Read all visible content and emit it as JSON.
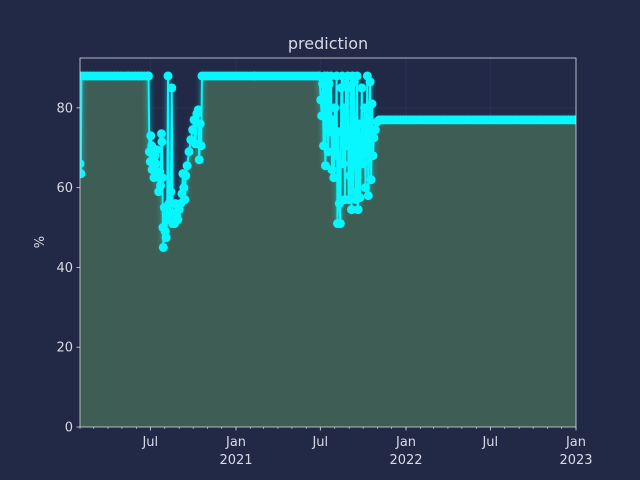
{
  "chart_data": {
    "type": "area",
    "title": "prediction",
    "xlabel": "",
    "ylabel": "%",
    "xlim": [
      "2020-02-01",
      "2023-01-01"
    ],
    "ylim": [
      0,
      92.5
    ],
    "yticks": [
      0,
      20,
      40,
      60,
      80
    ],
    "xticks": [
      {
        "date": "2020-07-01",
        "label": "Jul",
        "sublabel": ""
      },
      {
        "date": "2021-01-01",
        "label": "Jan",
        "sublabel": "2021"
      },
      {
        "date": "2021-07-01",
        "label": "Jul",
        "sublabel": ""
      },
      {
        "date": "2022-01-01",
        "label": "Jan",
        "sublabel": "2022"
      },
      {
        "date": "2022-07-01",
        "label": "Jul",
        "sublabel": ""
      },
      {
        "date": "2023-01-01",
        "label": "Jan",
        "sublabel": "2023"
      }
    ],
    "grid": true,
    "line_color": "#08f7fe",
    "fill_color": "#3e5e55",
    "background": "#212946",
    "series": [
      {
        "points": [
          [
            "2020-02-01",
            66
          ],
          [
            "2020-02-03",
            63.5
          ],
          [
            "2020-02-04",
            88
          ],
          [
            "2020-06-27",
            88
          ],
          [
            "2020-06-29",
            69
          ],
          [
            "2020-07-01",
            66.5
          ],
          [
            "2020-07-02",
            73
          ],
          [
            "2020-07-04",
            70.5
          ],
          [
            "2020-07-05",
            64.5
          ],
          [
            "2020-07-07",
            67
          ],
          [
            "2020-07-09",
            62.5
          ],
          [
            "2020-07-11",
            68
          ],
          [
            "2020-07-13",
            66
          ],
          [
            "2020-07-15",
            69.5
          ],
          [
            "2020-07-17",
            63.5
          ],
          [
            "2020-07-19",
            59
          ],
          [
            "2020-07-21",
            64
          ],
          [
            "2020-07-23",
            60.5
          ],
          [
            "2020-07-25",
            73.5
          ],
          [
            "2020-07-26",
            71.5
          ],
          [
            "2020-07-27",
            62.5
          ],
          [
            "2020-07-28",
            50
          ],
          [
            "2020-07-29",
            45
          ],
          [
            "2020-07-31",
            55
          ],
          [
            "2020-08-02",
            49
          ],
          [
            "2020-08-04",
            47.5
          ],
          [
            "2020-08-06",
            52
          ],
          [
            "2020-08-08",
            88
          ],
          [
            "2020-08-10",
            56
          ],
          [
            "2020-08-12",
            53.5
          ],
          [
            "2020-08-14",
            59
          ],
          [
            "2020-08-16",
            85
          ],
          [
            "2020-08-18",
            51
          ],
          [
            "2020-08-20",
            53.5
          ],
          [
            "2020-08-22",
            51
          ],
          [
            "2020-08-24",
            56
          ],
          [
            "2020-08-26",
            53
          ],
          [
            "2020-08-29",
            52
          ],
          [
            "2020-09-01",
            54.5
          ],
          [
            "2020-09-04",
            56
          ],
          [
            "2020-09-07",
            58.5
          ],
          [
            "2020-09-09",
            63.5
          ],
          [
            "2020-09-11",
            60
          ],
          [
            "2020-09-13",
            57
          ],
          [
            "2020-09-15",
            63
          ],
          [
            "2020-09-18",
            65.5
          ],
          [
            "2020-09-22",
            69
          ],
          [
            "2020-09-26",
            72
          ],
          [
            "2020-09-30",
            74.5
          ],
          [
            "2020-10-03",
            77
          ],
          [
            "2020-10-06",
            71
          ],
          [
            "2020-10-09",
            78.5
          ],
          [
            "2020-10-12",
            79.5
          ],
          [
            "2020-10-14",
            67
          ],
          [
            "2020-10-16",
            76
          ],
          [
            "2020-10-18",
            70.5
          ],
          [
            "2020-10-20",
            88
          ],
          [
            "2021-06-29",
            88
          ],
          [
            "2021-07-02",
            82
          ],
          [
            "2021-07-04",
            78
          ],
          [
            "2021-07-06",
            86
          ],
          [
            "2021-07-08",
            70.5
          ],
          [
            "2021-07-10",
            88
          ],
          [
            "2021-07-12",
            65.5
          ],
          [
            "2021-07-14",
            84
          ],
          [
            "2021-07-16",
            88
          ],
          [
            "2021-07-18",
            69
          ],
          [
            "2021-07-20",
            86
          ],
          [
            "2021-07-22",
            74
          ],
          [
            "2021-07-24",
            88
          ],
          [
            "2021-07-26",
            64.5
          ],
          [
            "2021-07-28",
            77
          ],
          [
            "2021-07-30",
            62.5
          ],
          [
            "2021-08-01",
            80
          ],
          [
            "2021-08-03",
            68
          ],
          [
            "2021-08-05",
            88
          ],
          [
            "2021-08-07",
            51
          ],
          [
            "2021-08-09",
            74
          ],
          [
            "2021-08-11",
            56
          ],
          [
            "2021-08-13",
            51
          ],
          [
            "2021-08-15",
            85
          ],
          [
            "2021-08-17",
            88
          ],
          [
            "2021-08-19",
            66
          ],
          [
            "2021-08-21",
            80
          ],
          [
            "2021-08-23",
            57
          ],
          [
            "2021-08-25",
            86
          ],
          [
            "2021-08-27",
            70.5
          ],
          [
            "2021-08-29",
            88
          ],
          [
            "2021-08-31",
            57
          ],
          [
            "2021-09-02",
            63
          ],
          [
            "2021-09-04",
            85
          ],
          [
            "2021-09-06",
            54.5
          ],
          [
            "2021-09-08",
            88
          ],
          [
            "2021-09-10",
            59
          ],
          [
            "2021-09-12",
            86.5
          ],
          [
            "2021-09-14",
            71
          ],
          [
            "2021-09-16",
            57
          ],
          [
            "2021-09-18",
            88
          ],
          [
            "2021-09-20",
            54.5
          ],
          [
            "2021-09-22",
            76
          ],
          [
            "2021-09-24",
            57.5
          ],
          [
            "2021-09-26",
            68
          ],
          [
            "2021-09-28",
            85
          ],
          [
            "2021-09-30",
            66
          ],
          [
            "2021-10-02",
            72
          ],
          [
            "2021-10-04",
            80
          ],
          [
            "2021-10-06",
            60
          ],
          [
            "2021-10-08",
            74.5
          ],
          [
            "2021-10-10",
            88
          ],
          [
            "2021-10-12",
            58
          ],
          [
            "2021-10-14",
            71
          ],
          [
            "2021-10-16",
            86.5
          ],
          [
            "2021-10-18",
            62
          ],
          [
            "2021-10-20",
            81
          ],
          [
            "2021-10-22",
            68
          ],
          [
            "2021-10-24",
            72.5
          ],
          [
            "2021-10-27",
            74.5
          ],
          [
            "2021-10-31",
            76.5
          ],
          [
            "2021-11-05",
            77
          ],
          [
            "2023-01-01",
            77
          ]
        ]
      }
    ]
  }
}
